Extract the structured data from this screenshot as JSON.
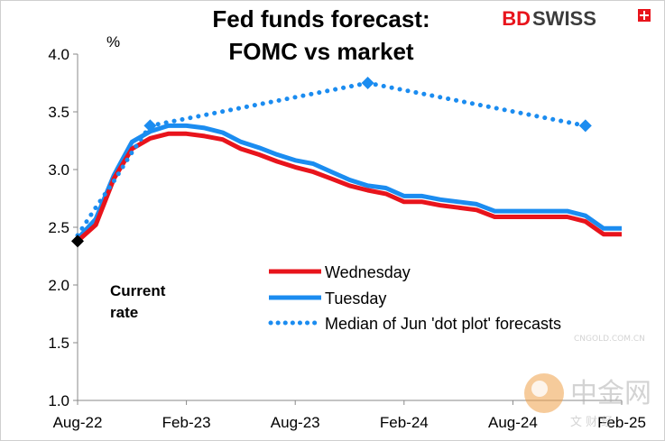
{
  "chart_data": {
    "type": "line",
    "title_lines": [
      "Fed funds forecast:",
      "FOMC vs market"
    ],
    "unit_label": "%",
    "ylim": [
      1.0,
      4.0
    ],
    "y_ticks": [
      "1.0",
      "1.5",
      "2.0",
      "2.5",
      "3.0",
      "3.5",
      "4.0"
    ],
    "x_ticks": [
      {
        "label": "Aug-22",
        "t": 0
      },
      {
        "label": "Feb-23",
        "t": 6
      },
      {
        "label": "Aug-23",
        "t": 12
      },
      {
        "label": "Feb-24",
        "t": 18
      },
      {
        "label": "Aug-24",
        "t": 24
      },
      {
        "label": "Feb-25",
        "t": 30
      }
    ],
    "x_range": [
      0,
      30
    ],
    "series": [
      {
        "name": "Wednesday",
        "color": "#e8141c",
        "style": "solid",
        "points": [
          [
            0,
            2.38
          ],
          [
            1,
            2.52
          ],
          [
            2,
            2.92
          ],
          [
            3,
            3.18
          ],
          [
            4,
            3.27
          ],
          [
            5,
            3.31
          ],
          [
            6,
            3.31
          ],
          [
            7,
            3.29
          ],
          [
            8,
            3.26
          ],
          [
            9,
            3.18
          ],
          [
            10,
            3.13
          ],
          [
            11,
            3.07
          ],
          [
            12,
            3.02
          ],
          [
            13,
            2.98
          ],
          [
            14,
            2.92
          ],
          [
            15,
            2.86
          ],
          [
            16,
            2.82
          ],
          [
            17,
            2.79
          ],
          [
            18,
            2.72
          ],
          [
            19,
            2.72
          ],
          [
            20,
            2.69
          ],
          [
            21,
            2.67
          ],
          [
            22,
            2.65
          ],
          [
            23,
            2.59
          ],
          [
            24,
            2.59
          ],
          [
            25,
            2.59
          ],
          [
            26,
            2.59
          ],
          [
            27,
            2.59
          ],
          [
            28,
            2.55
          ],
          [
            29,
            2.44
          ],
          [
            30,
            2.44
          ]
        ]
      },
      {
        "name": "Tuesday",
        "color": "#1b8cf0",
        "style": "solid",
        "points": [
          [
            0,
            2.4
          ],
          [
            1,
            2.57
          ],
          [
            2,
            2.95
          ],
          [
            3,
            3.24
          ],
          [
            4,
            3.33
          ],
          [
            5,
            3.38
          ],
          [
            6,
            3.38
          ],
          [
            7,
            3.36
          ],
          [
            8,
            3.32
          ],
          [
            9,
            3.24
          ],
          [
            10,
            3.19
          ],
          [
            11,
            3.13
          ],
          [
            12,
            3.08
          ],
          [
            13,
            3.05
          ],
          [
            14,
            2.98
          ],
          [
            15,
            2.91
          ],
          [
            16,
            2.86
          ],
          [
            17,
            2.84
          ],
          [
            18,
            2.77
          ],
          [
            19,
            2.77
          ],
          [
            20,
            2.74
          ],
          [
            21,
            2.72
          ],
          [
            22,
            2.7
          ],
          [
            23,
            2.64
          ],
          [
            24,
            2.64
          ],
          [
            25,
            2.64
          ],
          [
            26,
            2.64
          ],
          [
            27,
            2.64
          ],
          [
            28,
            2.6
          ],
          [
            29,
            2.49
          ],
          [
            30,
            2.49
          ]
        ]
      },
      {
        "name": "Median of Jun 'dot plot' forecasts",
        "color": "#1b8cf0",
        "style": "dotted",
        "points": [
          [
            0,
            2.43
          ],
          [
            1,
            2.67
          ],
          [
            2,
            2.9
          ],
          [
            3,
            3.15
          ],
          [
            4,
            3.38
          ],
          [
            16,
            3.75
          ],
          [
            28,
            3.38
          ]
        ],
        "markers_at": [
          4,
          16,
          28
        ]
      }
    ],
    "current_rate": {
      "t": 0,
      "value": 2.38,
      "label_lines": [
        "Current",
        "rate"
      ]
    },
    "legend_position": "center-right"
  },
  "branding": {
    "logo_text_bd": "BD",
    "logo_text_swiss": "SWISS",
    "watermark_cn": "中金网",
    "watermark_url": "CNGOLD.COM.CN",
    "watermark_sub": "文 财 经"
  },
  "colors": {
    "red": "#e8141c",
    "blue": "#1b8cf0",
    "axis": "#888888",
    "marker_black": "#000000"
  }
}
